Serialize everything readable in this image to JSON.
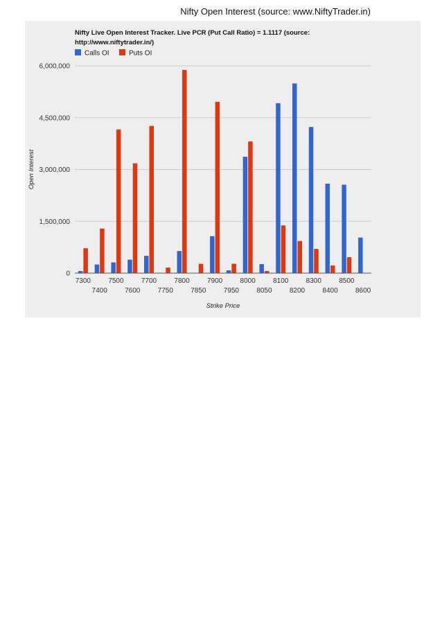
{
  "page": {
    "header": "Nifty Open Interest (source: www.NiftyTrader.in)"
  },
  "chart_data": {
    "type": "bar",
    "title_line1": "Nifty Live Open Interest Tracker. Live PCR (Put Call Ratio) = 1.1117 (source:",
    "title_line2": "http://www.niftytrader.in/)",
    "xlabel": "Strike Price",
    "ylabel": "Open Interest",
    "ylim": [
      0,
      6000000
    ],
    "yticks": [
      0,
      1500000,
      3000000,
      4500000,
      6000000
    ],
    "ytick_labels": [
      "0",
      "1,500,000",
      "3,000,000",
      "4,500,000",
      "6,000,000"
    ],
    "legend_position": "top-left",
    "grid": true,
    "categories": [
      "7300",
      "7400",
      "7500",
      "7600",
      "7700",
      "7750",
      "7800",
      "7850",
      "7900",
      "7950",
      "8000",
      "8050",
      "8100",
      "8200",
      "8300",
      "8400",
      "8500",
      "8600"
    ],
    "series": [
      {
        "name": "Calls OI",
        "color": "#3366cc",
        "values": [
          60000,
          250000,
          310000,
          390000,
          500000,
          0,
          640000,
          0,
          1070000,
          80000,
          3370000,
          260000,
          4920000,
          5490000,
          4230000,
          2590000,
          2560000,
          1030000
        ]
      },
      {
        "name": "Puts OI",
        "color": "#dc3912",
        "values": [
          720000,
          1290000,
          4160000,
          3180000,
          4260000,
          160000,
          5880000,
          270000,
          4960000,
          270000,
          3810000,
          60000,
          1380000,
          930000,
          700000,
          220000,
          460000,
          0
        ]
      }
    ]
  }
}
